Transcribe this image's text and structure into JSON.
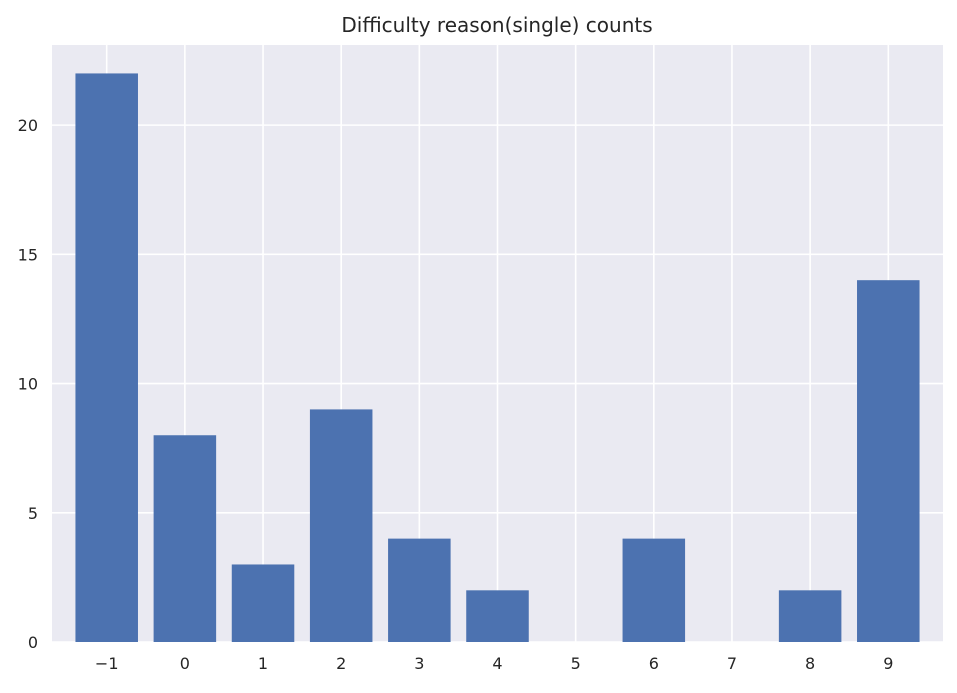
{
  "chart_data": {
    "type": "bar",
    "title": "Difficulty reason(single) counts",
    "xlabel": "",
    "ylabel": "",
    "categories": [
      "−1",
      "0",
      "1",
      "2",
      "3",
      "4",
      "5",
      "6",
      "7",
      "8",
      "9"
    ],
    "series": [
      {
        "values": [
          22,
          8,
          3,
          9,
          4,
          2,
          0,
          4,
          0,
          2,
          14
        ]
      }
    ],
    "ylim": [
      0,
      23.1
    ],
    "yticks": [
      0,
      5,
      10,
      15,
      20
    ],
    "grid": true,
    "legend": "none",
    "colors": {
      "bar": "#4c72b0",
      "plot_background": "#eaeaf2",
      "grid": "#ffffff",
      "text": "#262626"
    }
  }
}
